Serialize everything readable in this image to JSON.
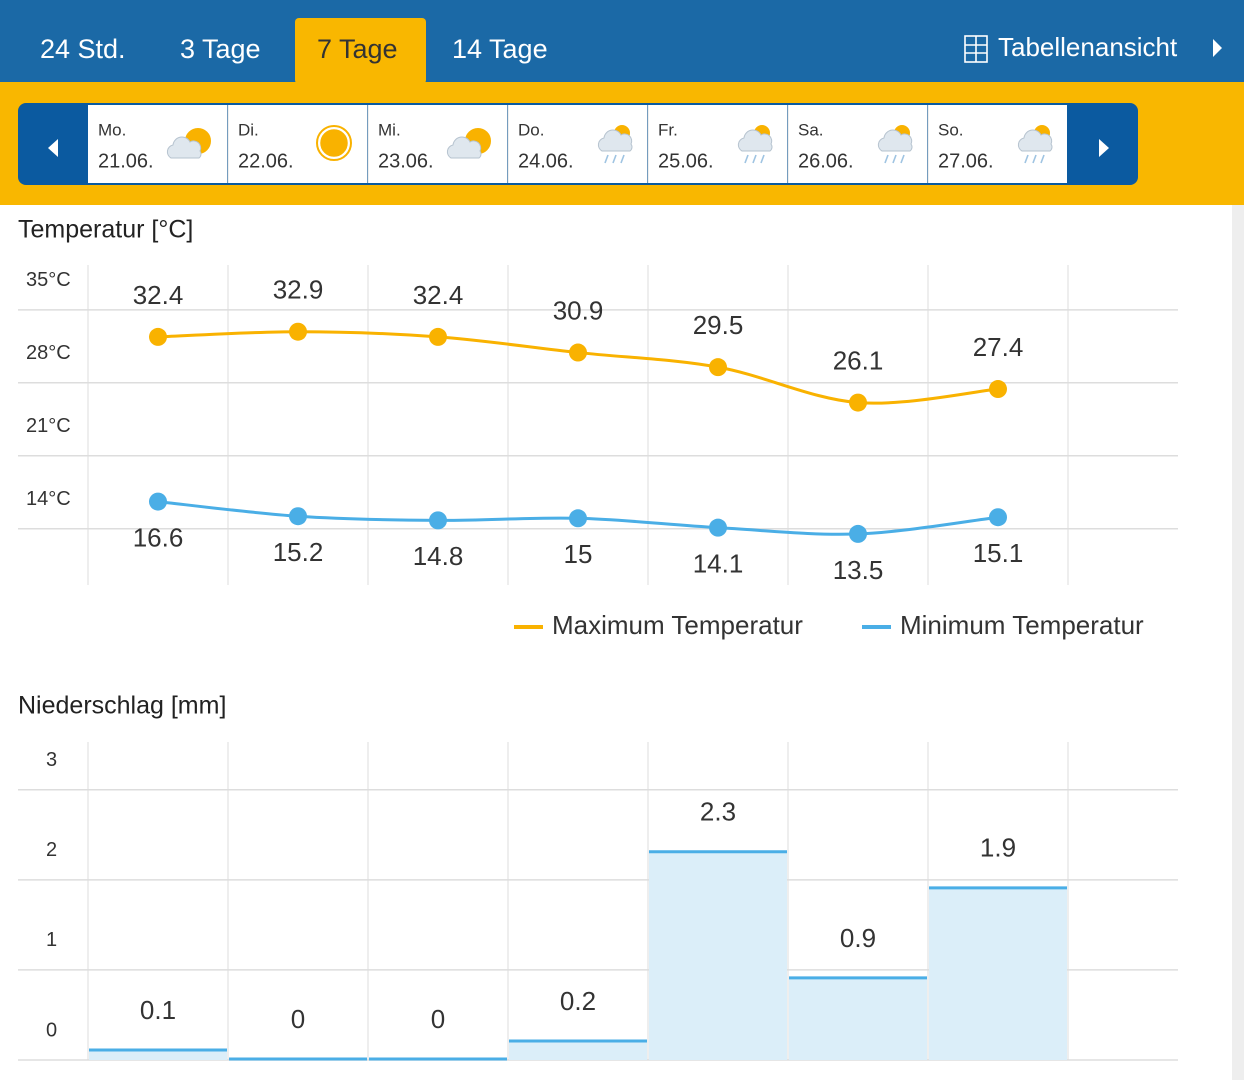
{
  "tabs": [
    "24 Std.",
    "3 Tage",
    "7 Tage",
    "14 Tage"
  ],
  "active_tab": 2,
  "table_view": "Tabellenansicht",
  "days": [
    {
      "weekday": "Mo.",
      "date": "21.06."
    },
    {
      "weekday": "Di.",
      "date": "22.06."
    },
    {
      "weekday": "Mi.",
      "date": "23.06."
    },
    {
      "weekday": "Do.",
      "date": "24.06."
    },
    {
      "weekday": "Fr.",
      "date": "25.06."
    },
    {
      "weekday": "Sa.",
      "date": "26.06."
    },
    {
      "weekday": "So.",
      "date": "27.06."
    }
  ],
  "chart_data": [
    {
      "type": "line",
      "title": "Temperatur [°C]",
      "series": [
        {
          "name": "Maximum Temperatur",
          "color": "#f9b200",
          "values": [
            32.4,
            32.9,
            32.4,
            30.9,
            29.5,
            26.1,
            27.4
          ]
        },
        {
          "name": "Minimum Temperatur",
          "color": "#4aaee6",
          "values": [
            16.6,
            15.2,
            14.8,
            15,
            14.1,
            13.5,
            15.1
          ]
        }
      ],
      "ylim": [
        8.6,
        39.3
      ],
      "yticks": [
        {
          "value": 14,
          "label": "14°C"
        },
        {
          "value": 21,
          "label": "21°C"
        },
        {
          "value": 28,
          "label": "28°C"
        },
        {
          "value": 35,
          "label": "35°C"
        }
      ],
      "grid": true,
      "legend": "bottom-right"
    },
    {
      "type": "bar",
      "title": "Niederschlag [mm]",
      "values": [
        0.1,
        0,
        0,
        0.2,
        2.3,
        0.9,
        1.9
      ],
      "color": "#4aaee6",
      "fill": "#dbeef9",
      "ylim": [
        0,
        3.53
      ],
      "yticks": [
        0,
        1,
        2,
        3
      ],
      "grid": true
    }
  ]
}
